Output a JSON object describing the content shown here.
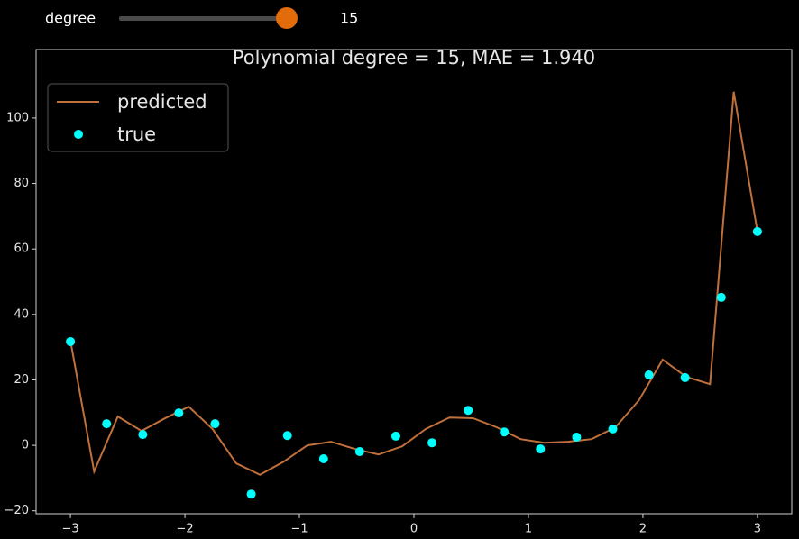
{
  "slider": {
    "label": "degree",
    "value": 15
  },
  "chart_data": {
    "type": "line",
    "title": "Polynomial degree = 15, MAE = 1.940",
    "series": [
      {
        "name": "predicted",
        "color": "#c0703a",
        "kind": "line",
        "x": [
          -3,
          -2.793,
          -2.586,
          -2.379,
          -2.172,
          -1.966,
          -1.759,
          -1.552,
          -1.345,
          -1.138,
          -0.931,
          -0.724,
          -0.517,
          -0.31,
          -0.103,
          0.103,
          0.31,
          0.517,
          0.724,
          0.931,
          1.138,
          1.345,
          1.552,
          1.759,
          1.966,
          2.172,
          2.379,
          2.586,
          2.793,
          3
        ],
        "values": [
          32,
          -8,
          8.8,
          4.4,
          8.3,
          11.8,
          5,
          -5.5,
          -9,
          -5,
          0,
          1.1,
          -1.1,
          -2.8,
          -0.3,
          5,
          8.5,
          8.3,
          5.5,
          1.9,
          0.8,
          1.1,
          1.9,
          5.5,
          13.8,
          26.2,
          20.9,
          18.7,
          108,
          65.3
        ]
      },
      {
        "name": "true",
        "color": "#00ffff",
        "kind": "scatter",
        "x": [
          -3,
          -2.684,
          -2.368,
          -2.053,
          -1.737,
          -1.421,
          -1.105,
          -0.789,
          -0.474,
          -0.158,
          0.158,
          0.474,
          0.789,
          1.105,
          1.421,
          1.737,
          2.053,
          2.368,
          2.684,
          3
        ],
        "values": [
          31.7,
          6.6,
          3.3,
          9.9,
          6.6,
          -14.9,
          3,
          -4.1,
          -1.9,
          2.8,
          0.8,
          10.7,
          4.1,
          -1.1,
          2.5,
          5,
          21.5,
          20.7,
          45.2,
          65.3
        ]
      }
    ],
    "xlim": [
      -3.3,
      3.3
    ],
    "xticks": [
      {
        "value": -3,
        "label": "−3"
      },
      {
        "value": -2,
        "label": "−2"
      },
      {
        "value": -1,
        "label": "−1"
      },
      0,
      1,
      2,
      3
    ],
    "ylim": [
      -20.9,
      120.9
    ],
    "yticks": [
      {
        "value": -20,
        "label": "−20"
      },
      0,
      20,
      40,
      60,
      80,
      100
    ],
    "grid": false,
    "legend": "upper left"
  }
}
